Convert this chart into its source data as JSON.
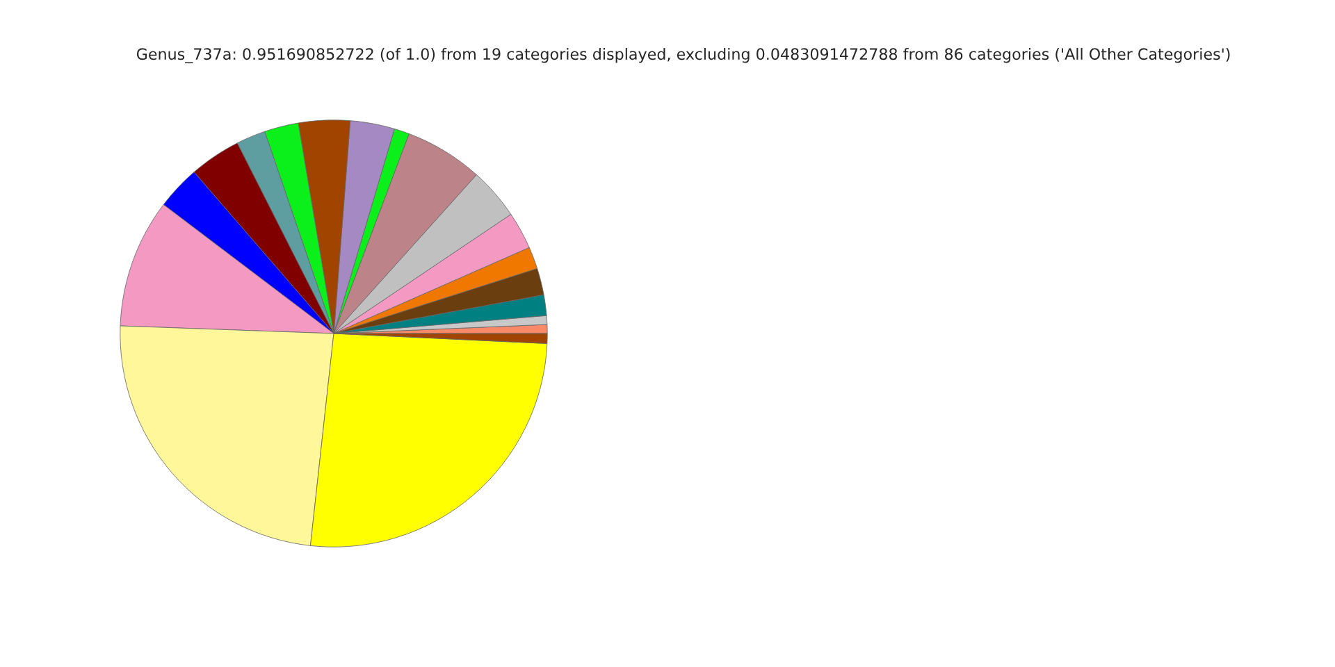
{
  "chart_data": {
    "type": "pie",
    "title": "Genus_737a: 0.951690852722 (of 1.0) from 19 categories displayed, excluding 0.0483091472788 from 86 categories ('All Other Categories')",
    "categories": [
      null,
      null,
      null,
      null,
      null,
      null,
      null,
      null,
      null,
      null,
      null,
      null,
      null,
      null,
      null,
      null,
      null,
      null,
      null
    ],
    "values": [
      0.67,
      0.67,
      1.56,
      2.03,
      1.67,
      2.83,
      3.92,
      5.92,
      1.14,
      3.36,
      3.89,
      2.58,
      2.22,
      3.89,
      3.33,
      9.75,
      23.83,
      25.99,
      0.75
    ],
    "colors": [
      "#f88a6a",
      "#c8c8c8",
      "#008080",
      "#6b3e0f",
      "#f07800",
      "#f49ac2",
      "#c0c0c0",
      "#bc8389",
      "#0bf01b",
      "#a589c2",
      "#a14400",
      "#0bf01b",
      "#5f9ea0",
      "#800000",
      "#0000ff",
      "#f49ac2",
      "#fff799",
      "#ffff00",
      "#a14400"
    ]
  }
}
